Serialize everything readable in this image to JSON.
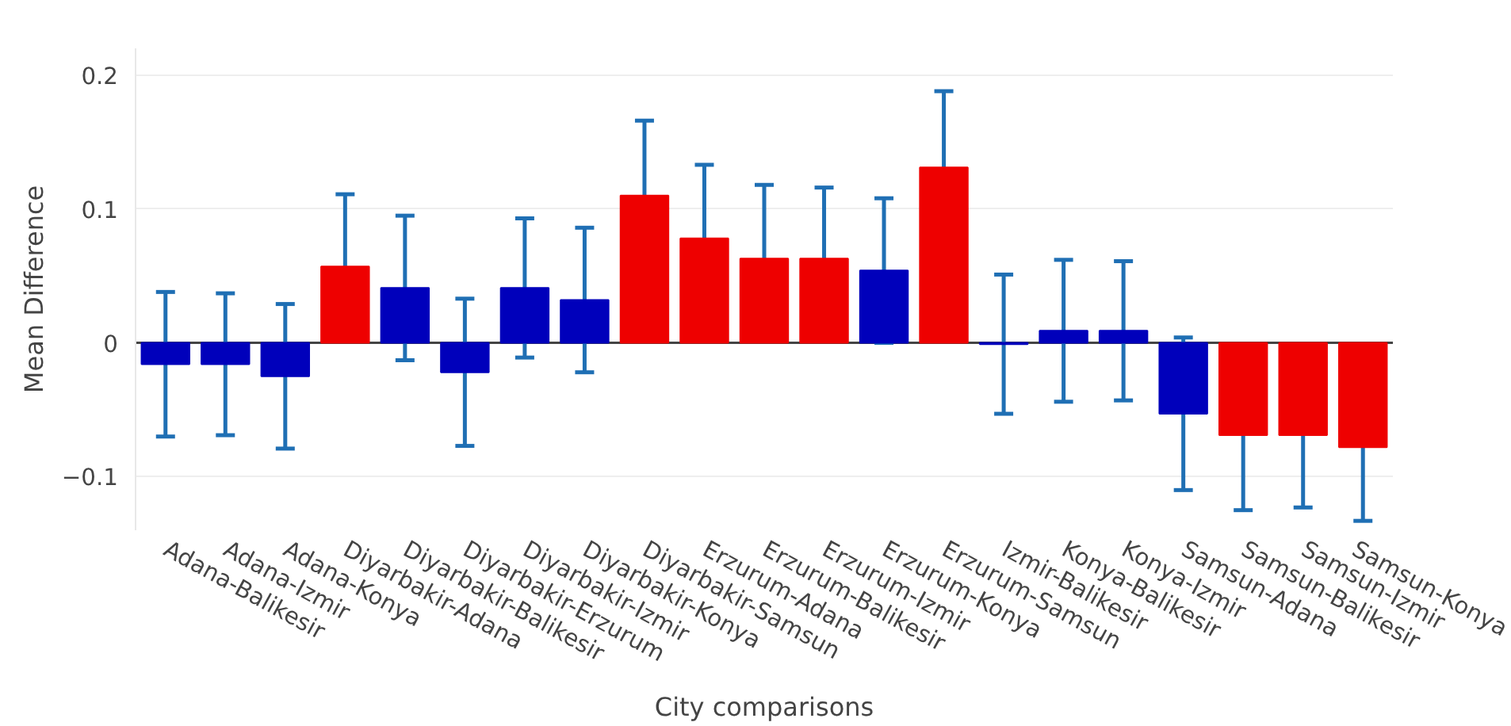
{
  "chart_data": {
    "type": "bar",
    "xlabel": "City comparisons",
    "ylabel": "Mean Difference",
    "categories": [
      "Adana-Balikesir",
      "Adana-Izmir",
      "Adana-Konya",
      "Diyarbakir-Adana",
      "Diyarbakir-Balikesir",
      "Diyarbakir-Erzurum",
      "Diyarbakir-Izmir",
      "Diyarbakir-Konya",
      "Diyarbakir-Samsun",
      "Erzurum-Adana",
      "Erzurum-Balikesir",
      "Erzurum-Izmir",
      "Erzurum-Konya",
      "Erzurum-Samsun",
      "Izmir-Balikesir",
      "Konya-Balikesir",
      "Konya-Izmir",
      "Samsun-Adana",
      "Samsun-Balikesir",
      "Samsun-Izmir",
      "Samsun-Konya"
    ],
    "values": [
      -0.016,
      -0.016,
      -0.025,
      0.057,
      0.041,
      -0.022,
      0.041,
      0.032,
      0.11,
      0.078,
      0.063,
      0.063,
      0.054,
      0.131,
      -0.001,
      0.009,
      0.009,
      -0.053,
      -0.069,
      -0.069,
      -0.078
    ],
    "errors": [
      0.054,
      0.053,
      0.054,
      0.054,
      0.054,
      0.055,
      0.052,
      0.054,
      0.056,
      0.055,
      0.055,
      0.053,
      0.054,
      0.057,
      0.052,
      0.053,
      0.052,
      0.057,
      0.056,
      0.054,
      0.055
    ],
    "colors": [
      "#0000bb",
      "#0000bb",
      "#0000bb",
      "#ee0000",
      "#0000bb",
      "#0000bb",
      "#0000bb",
      "#0000bb",
      "#ee0000",
      "#ee0000",
      "#ee0000",
      "#ee0000",
      "#0000bb",
      "#ee0000",
      "#0000bb",
      "#0000bb",
      "#0000bb",
      "#0000bb",
      "#ee0000",
      "#ee0000",
      "#ee0000"
    ],
    "ylim": [
      -0.14,
      0.22
    ],
    "yticks": [
      {
        "value": -0.1,
        "label": "−0.1"
      },
      0,
      0.1,
      0.2
    ],
    "grid": "y"
  }
}
